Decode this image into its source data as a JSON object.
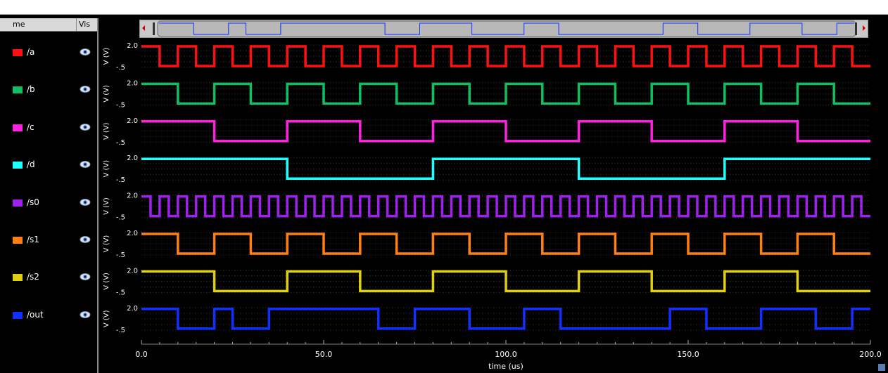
{
  "window_title": "",
  "panel": {
    "name_header": "me",
    "vis_header": "Vis"
  },
  "colors": {
    "a": "#ff1010",
    "b": "#10c060",
    "c": "#ff20e0",
    "d": "#20ffff",
    "s0": "#a020f0",
    "s1": "#ff8010",
    "s2": "#e0d010",
    "out": "#1030ff"
  },
  "chart_data": {
    "type": "line",
    "step": true,
    "x_range": [
      0,
      200
    ],
    "xlabel": "time (us)",
    "x_ticks": [
      "0.0",
      "50.0",
      "100.0",
      "150.0",
      "200.0"
    ],
    "ylabel": "V (V)",
    "y_range": [
      -0.5,
      2.0
    ],
    "y_ticks": [
      "2.0",
      "-.5"
    ],
    "grid": true,
    "series": [
      {
        "name": "/a",
        "color": "#ff1010",
        "initial": 1,
        "transitions": [
          5,
          10,
          15,
          20,
          25,
          30,
          35,
          40,
          45,
          50,
          55,
          60,
          65,
          70,
          75,
          80,
          85,
          90,
          95,
          100,
          105,
          110,
          115,
          120,
          125,
          130,
          135,
          140,
          145,
          150,
          155,
          160,
          165,
          170,
          175,
          180,
          185,
          190,
          195
        ]
      },
      {
        "name": "/b",
        "color": "#10c060",
        "initial": 1,
        "transitions": [
          10,
          20,
          30,
          40,
          50,
          60,
          70,
          80,
          90,
          100,
          110,
          120,
          130,
          140,
          150,
          160,
          170,
          180,
          190
        ]
      },
      {
        "name": "/c",
        "color": "#ff20e0",
        "initial": 1,
        "transitions": [
          20,
          40,
          60,
          80,
          100,
          120,
          140,
          160,
          180
        ]
      },
      {
        "name": "/d",
        "color": "#20ffff",
        "initial": 1,
        "transitions": [
          40,
          80,
          120,
          160
        ]
      },
      {
        "name": "/s0",
        "color": "#a020f0",
        "initial": 1,
        "transitions": [
          2.5,
          5,
          7.5,
          10,
          12.5,
          15,
          17.5,
          20,
          22.5,
          25,
          27.5,
          30,
          32.5,
          35,
          37.5,
          40,
          42.5,
          45,
          47.5,
          50,
          52.5,
          55,
          57.5,
          60,
          62.5,
          65,
          67.5,
          70,
          72.5,
          75,
          77.5,
          80,
          82.5,
          85,
          87.5,
          90,
          92.5,
          95,
          97.5,
          100,
          102.5,
          105,
          107.5,
          110,
          112.5,
          115,
          117.5,
          120,
          122.5,
          125,
          127.5,
          130,
          132.5,
          135,
          137.5,
          140,
          142.5,
          145,
          147.5,
          150,
          152.5,
          155,
          157.5,
          160,
          162.5,
          165,
          167.5,
          170,
          172.5,
          175,
          177.5,
          180,
          182.5,
          185,
          187.5,
          190,
          192.5,
          195,
          197.5
        ]
      },
      {
        "name": "/s1",
        "color": "#ff8010",
        "initial": 1,
        "transitions": [
          10,
          20,
          30,
          40,
          50,
          60,
          70,
          80,
          90,
          100,
          110,
          120,
          130,
          140,
          150,
          160,
          170,
          180,
          190
        ]
      },
      {
        "name": "/s2",
        "color": "#e0d010",
        "initial": 1,
        "transitions": [
          20,
          40,
          60,
          80,
          100,
          120,
          140,
          160,
          180
        ]
      },
      {
        "name": "/out",
        "color": "#1030ff",
        "initial": 1,
        "transitions": [
          10,
          20,
          25,
          35,
          65,
          75,
          90,
          105,
          115,
          145,
          155,
          170,
          185,
          195
        ]
      }
    ]
  }
}
